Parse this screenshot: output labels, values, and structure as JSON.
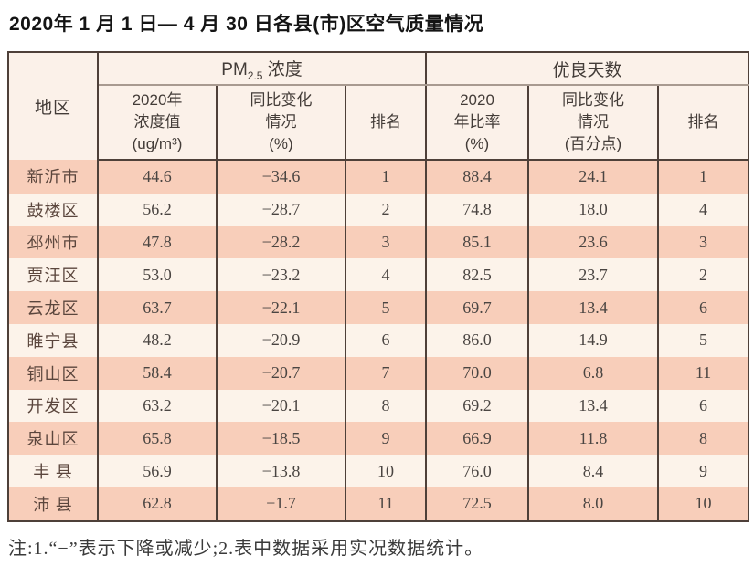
{
  "page": {
    "title": "2020年 1 月 1 日— 4 月 30 日各县(市)区空气质量情况",
    "footnote": "注:1.“−”表示下降或减少;2.表中数据采用实况数据统计。"
  },
  "colors": {
    "row_odd": "#f8ceba",
    "row_even": "#fcf3ea",
    "header_bg": "#fbf1e9",
    "border_dark": "#4e4039",
    "border_light": "#a89a90",
    "title_color": "#141414",
    "text_header": "#433c38",
    "text_num": "#4a4542",
    "text_region": "#5b463d",
    "note_color": "#3a3a3a"
  },
  "table": {
    "corner_header": "地区",
    "group_headers": [
      {
        "prefix": "PM",
        "sub": "2.5",
        "suffix": " 浓度"
      },
      {
        "text": "优良天数"
      }
    ],
    "sub_headers": [
      "2020年\n浓度值\n(ug/m³)",
      "同比变化\n情况\n(%)",
      "排名",
      "2020\n年比率\n(%)",
      "同比变化\n情况\n(百分点)",
      "排名"
    ],
    "rows": [
      {
        "region": "新沂市",
        "pm_value": "44.6",
        "pm_change": "−34.6",
        "pm_rank": "1",
        "days_rate": "88.4",
        "days_change": "24.1",
        "days_rank": "1"
      },
      {
        "region": "鼓楼区",
        "pm_value": "56.2",
        "pm_change": "−28.7",
        "pm_rank": "2",
        "days_rate": "74.8",
        "days_change": "18.0",
        "days_rank": "4"
      },
      {
        "region": "邳州市",
        "pm_value": "47.8",
        "pm_change": "−28.2",
        "pm_rank": "3",
        "days_rate": "85.1",
        "days_change": "23.6",
        "days_rank": "3"
      },
      {
        "region": "贾汪区",
        "pm_value": "53.0",
        "pm_change": "−23.2",
        "pm_rank": "4",
        "days_rate": "82.5",
        "days_change": "23.7",
        "days_rank": "2"
      },
      {
        "region": "云龙区",
        "pm_value": "63.7",
        "pm_change": "−22.1",
        "pm_rank": "5",
        "days_rate": "69.7",
        "days_change": "13.4",
        "days_rank": "6"
      },
      {
        "region": "睢宁县",
        "pm_value": "48.2",
        "pm_change": "−20.9",
        "pm_rank": "6",
        "days_rate": "86.0",
        "days_change": "14.9",
        "days_rank": "5"
      },
      {
        "region": "铜山区",
        "pm_value": "58.4",
        "pm_change": "−20.7",
        "pm_rank": "7",
        "days_rate": "70.0",
        "days_change": "6.8",
        "days_rank": "11"
      },
      {
        "region": "开发区",
        "pm_value": "63.2",
        "pm_change": "−20.1",
        "pm_rank": "8",
        "days_rate": "69.2",
        "days_change": "13.4",
        "days_rank": "6"
      },
      {
        "region": "泉山区",
        "pm_value": "65.8",
        "pm_change": "−18.5",
        "pm_rank": "9",
        "days_rate": "66.9",
        "days_change": "11.8",
        "days_rank": "8"
      },
      {
        "region": "丰 县",
        "pm_value": "56.9",
        "pm_change": "−13.8",
        "pm_rank": "10",
        "days_rate": "76.0",
        "days_change": "8.4",
        "days_rank": "9"
      },
      {
        "region": "沛 县",
        "pm_value": "62.8",
        "pm_change": "−1.7",
        "pm_rank": "11",
        "days_rate": "72.5",
        "days_change": "8.0",
        "days_rank": "10"
      }
    ]
  }
}
